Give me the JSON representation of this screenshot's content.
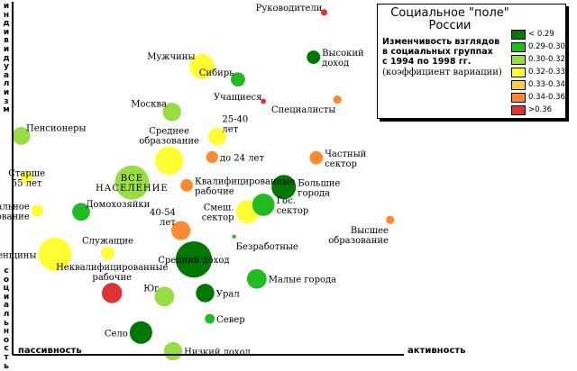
{
  "legend": {
    "title_lines": [
      "Социальное \"поле\"",
      "России"
    ],
    "subtitle_lines": [
      "Изменчивость взглядов",
      "в социальных группах",
      "с 1994 по 1998 гг."
    ],
    "note": "(коэффициент вариации)",
    "items": [
      {
        "label": "< 0.29",
        "color": "#007700"
      },
      {
        "label": "0.29-0.30",
        "color": "#22bb22"
      },
      {
        "label": "0.30-0.32",
        "color": "#99dd44"
      },
      {
        "label": "0.32-0.33",
        "color": "#ffff33"
      },
      {
        "label": "0.33-0.34",
        "color": "#ffcc44"
      },
      {
        "label": "0.34-0.36",
        "color": "#ff8833"
      },
      {
        "label": ">0.36",
        "color": "#dd3333"
      }
    ]
  },
  "chart_data": {
    "type": "scatter",
    "xlabel_left": "пассивность",
    "xlabel_right": "активность",
    "ylabel_top": "индивидуализм",
    "ylabel_bottom": "социальность",
    "xlim": [
      0,
      100
    ],
    "ylim": [
      0,
      100
    ],
    "points": [
      {
        "label": [
          "Руководители"
        ],
        "x": 79.6,
        "y": 97.0,
        "size": 2.2,
        "color_band": ">0.36",
        "label_pos": "upper-left"
      },
      {
        "label": [
          "Высокий",
          "доход"
        ],
        "x": 76.9,
        "y": 84.3,
        "size": 4.5,
        "color_band": "< 0.29",
        "label_pos": "right"
      },
      {
        "label": [
          "Мужчины"
        ],
        "x": 48.4,
        "y": 81.7,
        "size": 8.4,
        "color_band": "0.32-0.33",
        "label_pos": "upper-left"
      },
      {
        "label": [
          "Сибирь"
        ],
        "x": 57.6,
        "y": 78.0,
        "size": 4.8,
        "color_band": "0.29-0.30",
        "label_pos": "upper-left"
      },
      {
        "label": [
          "Учащиеся"
        ],
        "x": 64.1,
        "y": 71.8,
        "size": 1.8,
        "color_band": ">0.36",
        "label_pos": "upper-left"
      },
      {
        "label": [
          "Москва"
        ],
        "x": 40.7,
        "y": 68.8,
        "size": 6.2,
        "color_band": "0.30-0.32",
        "label_pos": "upper-left"
      },
      {
        "label": [
          "Специалисты"
        ],
        "x": 83.0,
        "y": 72.3,
        "size": 2.8,
        "color_band": "0.34-0.36",
        "label_pos": "below-left"
      },
      {
        "label": [
          "Пенсионеры"
        ],
        "x": 2.2,
        "y": 62.0,
        "size": 6.0,
        "color_band": "0.30-0.32",
        "label_pos": "upper-right"
      },
      {
        "label": [
          "25-40",
          "лет"
        ],
        "x": 52.3,
        "y": 61.8,
        "size": 6.0,
        "color_band": "0.32-0.33",
        "label_pos": "upper-right"
      },
      {
        "label": [
          "Среднее",
          "образование"
        ],
        "x": 40.0,
        "y": 55.0,
        "size": 9.5,
        "color_band": "0.32-0.33",
        "label_pos": "top"
      },
      {
        "label": [
          "до 24 лет"
        ],
        "x": 51.0,
        "y": 56.0,
        "size": 4.0,
        "color_band": "0.34-0.36",
        "label_pos": "right"
      },
      {
        "label": [
          "Частный",
          "сектор"
        ],
        "x": 77.6,
        "y": 55.8,
        "size": 4.5,
        "color_band": "0.34-0.36",
        "label_pos": "right"
      },
      {
        "label": [
          "Старше",
          "55 лет"
        ],
        "x": 3.6,
        "y": 50.3,
        "size": 4.2,
        "color_band": "0.32-0.33",
        "label_pos": "center"
      },
      {
        "label": [
          "ВСЕ",
          "НАСЕЛЕНИЕ"
        ],
        "x": 30.5,
        "y": 48.8,
        "size": 11.5,
        "color_band": "0.30-0.32",
        "label_pos": "center"
      },
      {
        "label": [
          "Квалифицированные",
          "рабочие"
        ],
        "x": 44.5,
        "y": 48.0,
        "size": 4.2,
        "color_band": "0.34-0.36",
        "label_pos": "right"
      },
      {
        "label": [
          "Большие",
          "города"
        ],
        "x": 69.3,
        "y": 47.5,
        "size": 8.2,
        "color_band": "< 0.29",
        "label_pos": "right"
      },
      {
        "label": [
          "Домохозяйки"
        ],
        "x": 17.5,
        "y": 40.5,
        "size": 6.0,
        "color_band": "0.29-0.30",
        "label_pos": "upper-right"
      },
      {
        "label": [
          "Начальное",
          "образование"
        ],
        "x": 6.3,
        "y": 40.8,
        "size": 4.0,
        "color_band": "0.32-0.33",
        "label_pos": "left"
      },
      {
        "label": [
          "Смеш.",
          "сектор"
        ],
        "x": 60.0,
        "y": 40.5,
        "size": 7.8,
        "color_band": "0.32-0.33",
        "label_pos": "left"
      },
      {
        "label": [
          "Гос.",
          "сектор"
        ],
        "x": 64.1,
        "y": 42.5,
        "size": 7.5,
        "color_band": "0.29-0.30",
        "label_pos": "right"
      },
      {
        "label": [
          "40-54",
          "лет"
        ],
        "x": 43.0,
        "y": 35.2,
        "size": 6.4,
        "color_band": "0.34-0.36",
        "label_pos": "upper-left"
      },
      {
        "label": [
          "Высшее",
          "образование"
        ],
        "x": 96.5,
        "y": 38.2,
        "size": 2.8,
        "color_band": "0.34-0.36",
        "label_pos": "below-left"
      },
      {
        "label": [
          "Безработные"
        ],
        "x": 56.6,
        "y": 33.5,
        "size": 1.3,
        "color_band": "0.29-0.30",
        "label_pos": "below-right"
      },
      {
        "label": [
          "Служащие"
        ],
        "x": 24.3,
        "y": 28.8,
        "size": 4.6,
        "color_band": "0.32-0.33",
        "label_pos": "top"
      },
      {
        "label": [
          "Женщины"
        ],
        "x": 10.8,
        "y": 28.5,
        "size": 11.2,
        "color_band": "0.32-0.33",
        "label_pos": "left"
      },
      {
        "label": [
          "Средний доход"
        ],
        "x": 46.3,
        "y": 27.0,
        "size": 12.2,
        "color_band": "< 0.29",
        "label_pos": "center"
      },
      {
        "label": [
          "Малые города"
        ],
        "x": 62.4,
        "y": 21.5,
        "size": 6.6,
        "color_band": "0.29-0.30",
        "label_pos": "right"
      },
      {
        "label": [
          "Неквалифицированные",
          "рабочие"
        ],
        "x": 25.4,
        "y": 17.5,
        "size": 6.8,
        "color_band": ">0.36",
        "label_pos": "top"
      },
      {
        "label": [
          "Юг"
        ],
        "x": 38.8,
        "y": 16.5,
        "size": 6.6,
        "color_band": "0.30-0.32",
        "label_pos": "upper-left"
      },
      {
        "label": [
          "Урал"
        ],
        "x": 49.2,
        "y": 17.5,
        "size": 6.2,
        "color_band": "< 0.29",
        "label_pos": "right"
      },
      {
        "label": [
          "Север"
        ],
        "x": 50.4,
        "y": 10.2,
        "size": 3.3,
        "color_band": "0.29-0.30",
        "label_pos": "right"
      },
      {
        "label": [
          "Село"
        ],
        "x": 32.8,
        "y": 6.3,
        "size": 7.6,
        "color_band": "< 0.29",
        "label_pos": "left"
      },
      {
        "label": [
          "Низкий доход"
        ],
        "x": 41.0,
        "y": 1.0,
        "size": 6.2,
        "color_band": "0.30-0.32",
        "label_pos": "right"
      }
    ]
  }
}
